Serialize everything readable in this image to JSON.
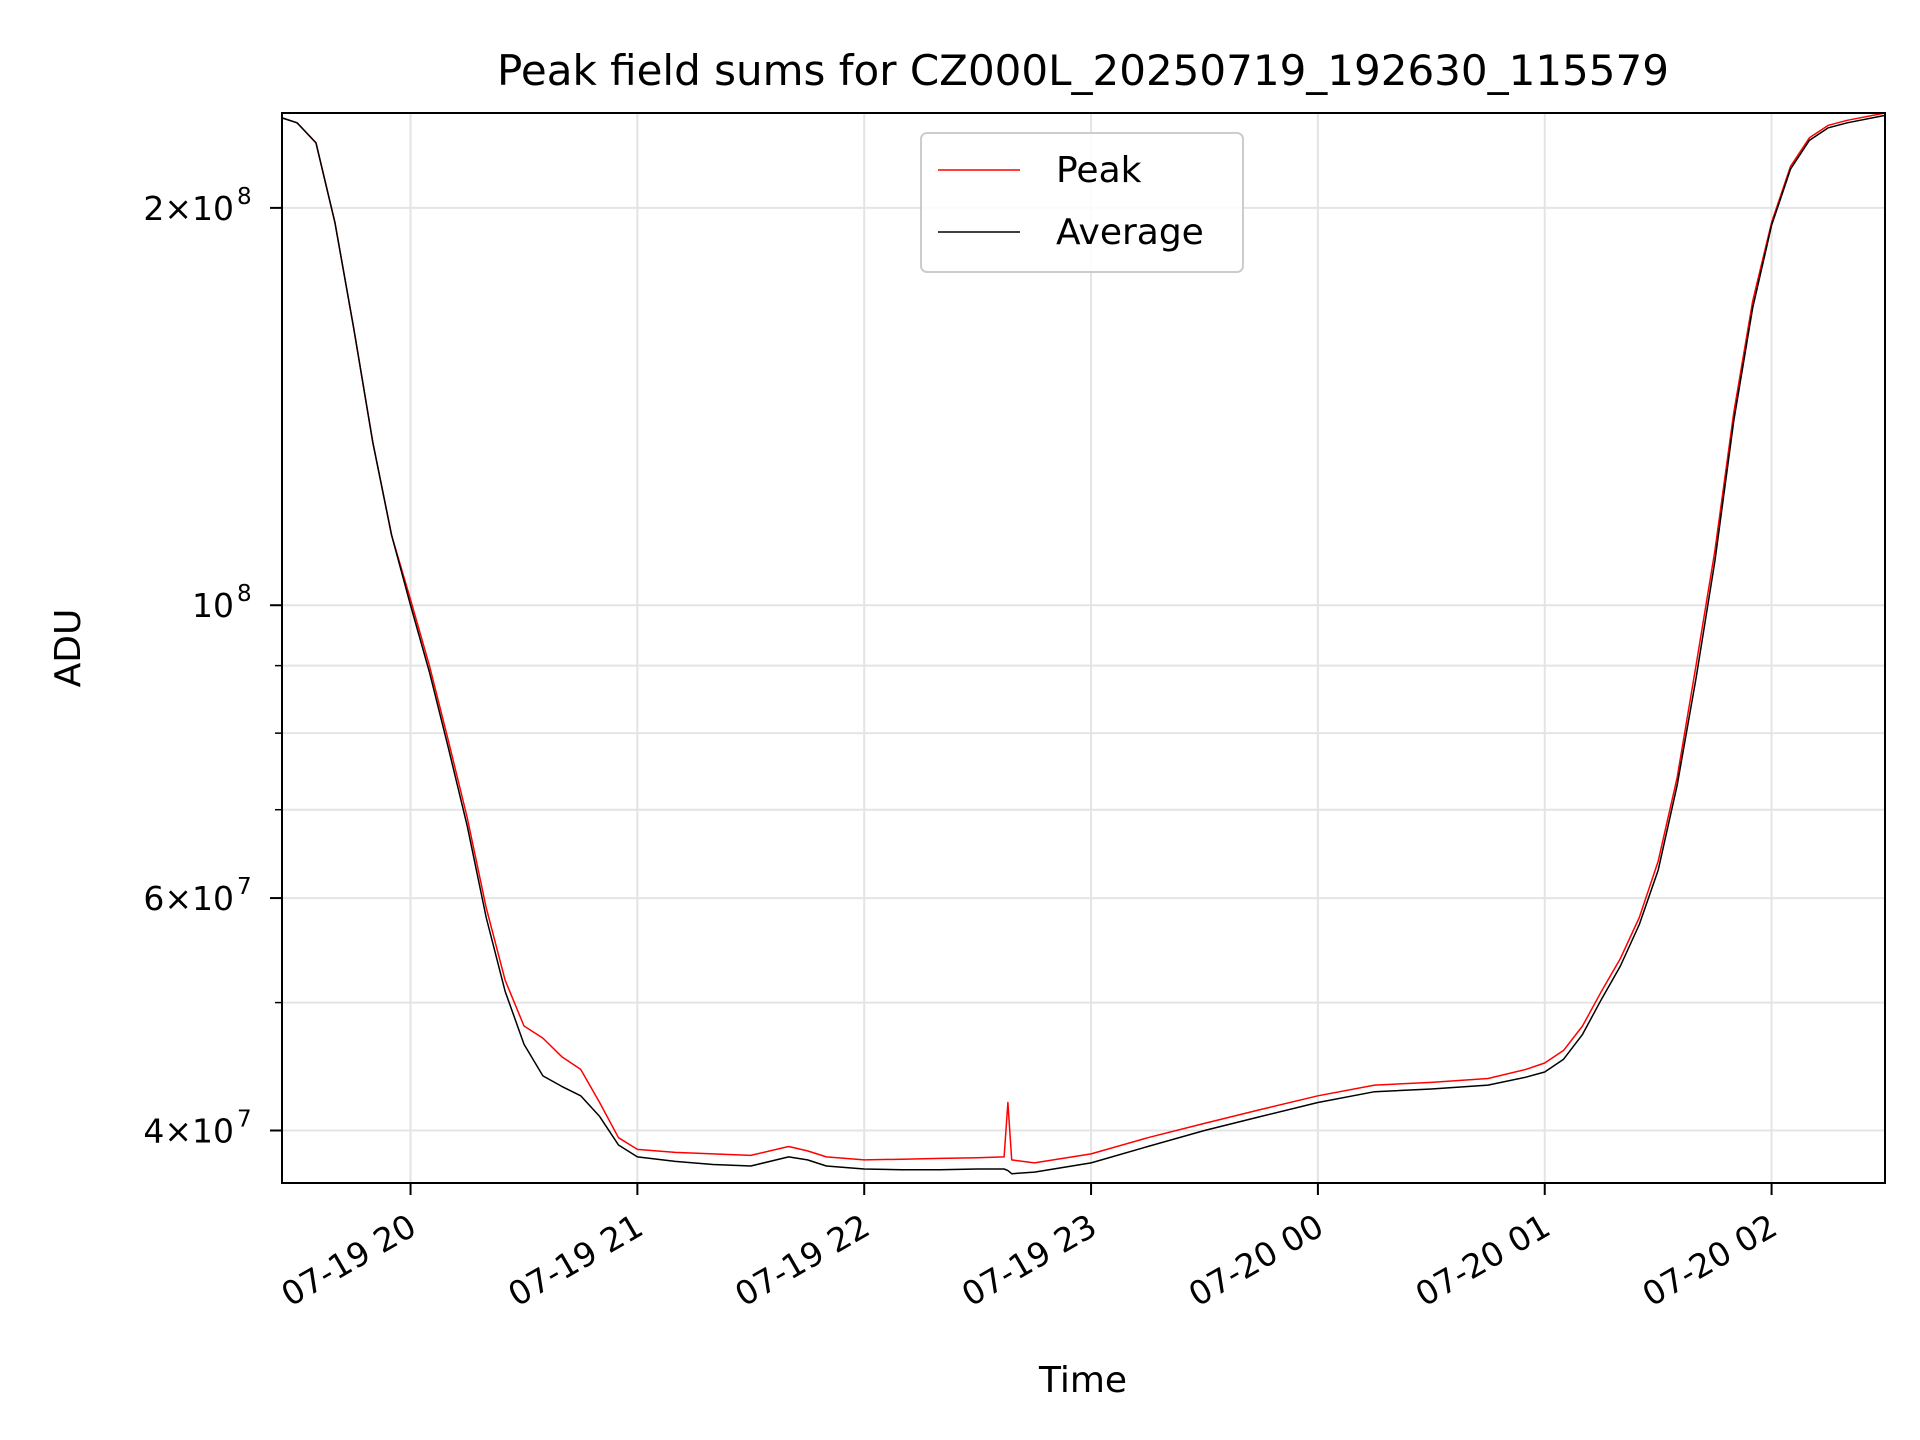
{
  "chart_data": {
    "type": "line",
    "title": "Peak field sums for CZ000L_20250719_192630_115579",
    "xlabel": "Time",
    "ylabel": "ADU",
    "yscale": "log",
    "grid": true,
    "legend_position": "top-center",
    "xlim": [
      "2025-07-19 19:26",
      "2025-07-20 02:30"
    ],
    "ylim": [
      36500000,
      236000000
    ],
    "x_ticks": [
      {
        "value": "2025-07-19 20:00",
        "label": "07-19 20"
      },
      {
        "value": "2025-07-19 21:00",
        "label": "07-19 21"
      },
      {
        "value": "2025-07-19 22:00",
        "label": "07-19 22"
      },
      {
        "value": "2025-07-19 23:00",
        "label": "07-19 23"
      },
      {
        "value": "2025-07-20 00:00",
        "label": "07-20 00"
      },
      {
        "value": "2025-07-20 01:00",
        "label": "07-20 01"
      },
      {
        "value": "2025-07-20 02:00",
        "label": "07-20 02"
      }
    ],
    "y_major_ticks": [
      {
        "value": 40000000,
        "label_base": "4×10",
        "label_exp": "7"
      },
      {
        "value": 60000000,
        "label_base": "6×10",
        "label_exp": "7"
      },
      {
        "value": 100000000,
        "label_base": "10",
        "label_exp": "8"
      },
      {
        "value": 200000000,
        "label_base": "2×10",
        "label_exp": "8"
      }
    ],
    "y_minor_ticks": [
      50000000,
      70000000,
      80000000,
      90000000
    ],
    "series": [
      {
        "name": "Peak",
        "color": "#ff0000",
        "x": [
          "2025-07-19 19:26",
          "2025-07-19 19:30",
          "2025-07-19 19:35",
          "2025-07-19 19:40",
          "2025-07-19 19:45",
          "2025-07-19 19:50",
          "2025-07-19 19:55",
          "2025-07-19 20:00",
          "2025-07-19 20:05",
          "2025-07-19 20:10",
          "2025-07-19 20:15",
          "2025-07-19 20:20",
          "2025-07-19 20:25",
          "2025-07-19 20:30",
          "2025-07-19 20:35",
          "2025-07-19 20:40",
          "2025-07-19 20:45",
          "2025-07-19 20:50",
          "2025-07-19 20:55",
          "2025-07-19 21:00",
          "2025-07-19 21:10",
          "2025-07-19 21:20",
          "2025-07-19 21:30",
          "2025-07-19 21:40",
          "2025-07-19 21:45",
          "2025-07-19 21:50",
          "2025-07-19 22:00",
          "2025-07-19 22:10",
          "2025-07-19 22:20",
          "2025-07-19 22:30",
          "2025-07-19 22:37",
          "2025-07-19 22:38",
          "2025-07-19 22:39",
          "2025-07-19 22:45",
          "2025-07-19 23:00",
          "2025-07-19 23:15",
          "2025-07-19 23:30",
          "2025-07-19 23:45",
          "2025-07-20 00:00",
          "2025-07-20 00:15",
          "2025-07-20 00:30",
          "2025-07-20 00:45",
          "2025-07-20 00:55",
          "2025-07-20 01:00",
          "2025-07-20 01:05",
          "2025-07-20 01:10",
          "2025-07-20 01:15",
          "2025-07-20 01:20",
          "2025-07-20 01:25",
          "2025-07-20 01:30",
          "2025-07-20 01:35",
          "2025-07-20 01:40",
          "2025-07-20 01:45",
          "2025-07-20 01:50",
          "2025-07-20 01:55",
          "2025-07-20 02:00",
          "2025-07-20 02:05",
          "2025-07-20 02:10",
          "2025-07-20 02:15",
          "2025-07-20 02:20",
          "2025-07-20 02:30"
        ],
        "values": [
          234000000,
          232000000,
          224000000,
          195000000,
          162000000,
          133000000,
          113000000,
          101000000,
          90000000,
          79000000,
          69000000,
          59000000,
          52000000,
          48000000,
          47000000,
          45500000,
          44500000,
          42000000,
          39500000,
          38700000,
          38500000,
          38400000,
          38300000,
          38900000,
          38600000,
          38200000,
          38000000,
          38050000,
          38100000,
          38150000,
          38200000,
          42000000,
          38000000,
          37800000,
          38400000,
          39500000,
          40500000,
          41500000,
          42500000,
          43300000,
          43500000,
          43800000,
          44500000,
          45000000,
          46000000,
          48000000,
          51000000,
          54000000,
          58000000,
          64000000,
          74000000,
          90000000,
          110000000,
          140000000,
          170000000,
          195000000,
          215000000,
          226000000,
          231000000,
          233000000,
          236000000
        ]
      },
      {
        "name": "Average",
        "color": "#000000",
        "x": [
          "2025-07-19 19:26",
          "2025-07-19 19:30",
          "2025-07-19 19:35",
          "2025-07-19 19:40",
          "2025-07-19 19:45",
          "2025-07-19 19:50",
          "2025-07-19 19:55",
          "2025-07-19 20:00",
          "2025-07-19 20:05",
          "2025-07-19 20:10",
          "2025-07-19 20:15",
          "2025-07-19 20:20",
          "2025-07-19 20:25",
          "2025-07-19 20:30",
          "2025-07-19 20:35",
          "2025-07-19 20:40",
          "2025-07-19 20:45",
          "2025-07-19 20:50",
          "2025-07-19 20:55",
          "2025-07-19 21:00",
          "2025-07-19 21:10",
          "2025-07-19 21:20",
          "2025-07-19 21:30",
          "2025-07-19 21:40",
          "2025-07-19 21:45",
          "2025-07-19 21:50",
          "2025-07-19 22:00",
          "2025-07-19 22:10",
          "2025-07-19 22:20",
          "2025-07-19 22:30",
          "2025-07-19 22:37",
          "2025-07-19 22:38",
          "2025-07-19 22:39",
          "2025-07-19 22:45",
          "2025-07-19 23:00",
          "2025-07-19 23:15",
          "2025-07-19 23:30",
          "2025-07-19 23:45",
          "2025-07-20 00:00",
          "2025-07-20 00:15",
          "2025-07-20 00:30",
          "2025-07-20 00:45",
          "2025-07-20 00:55",
          "2025-07-20 01:00",
          "2025-07-20 01:05",
          "2025-07-20 01:10",
          "2025-07-20 01:15",
          "2025-07-20 01:20",
          "2025-07-20 01:25",
          "2025-07-20 01:30",
          "2025-07-20 01:35",
          "2025-07-20 01:40",
          "2025-07-20 01:45",
          "2025-07-20 01:50",
          "2025-07-20 01:55",
          "2025-07-20 02:00",
          "2025-07-20 02:05",
          "2025-07-20 02:10",
          "2025-07-20 02:15",
          "2025-07-20 02:20",
          "2025-07-20 02:30"
        ],
        "values": [
          234000000,
          232000000,
          224000000,
          195000000,
          162000000,
          133000000,
          113000000,
          100000000,
          89000000,
          78000000,
          68000000,
          58000000,
          51000000,
          46500000,
          44000000,
          43200000,
          42500000,
          41000000,
          39000000,
          38200000,
          37900000,
          37700000,
          37600000,
          38200000,
          38000000,
          37600000,
          37400000,
          37350000,
          37350000,
          37400000,
          37400000,
          37300000,
          37100000,
          37200000,
          37800000,
          38900000,
          40000000,
          41000000,
          42000000,
          42800000,
          43000000,
          43300000,
          43900000,
          44300000,
          45300000,
          47300000,
          50300000,
          53300000,
          57300000,
          63000000,
          73000000,
          88000000,
          108000000,
          138000000,
          168000000,
          194000000,
          214000000,
          225000000,
          230000000,
          232000000,
          235000000
        ]
      }
    ]
  }
}
